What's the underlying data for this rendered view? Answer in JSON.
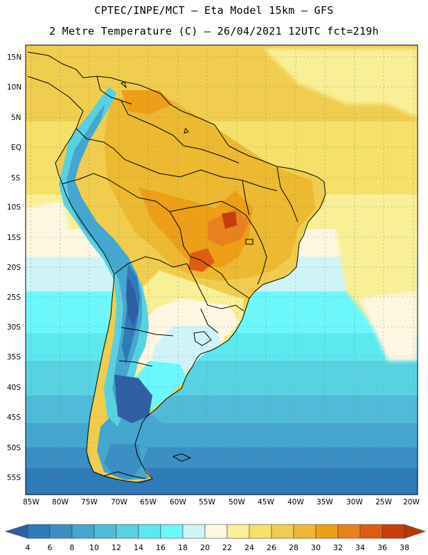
{
  "header": {
    "line1": "CPTEC/INPE/MCT –  Eta Model 15km – GFS",
    "line2": "2 Metre Temperature (C) – 26/04/2021 12UTC fct=219h"
  },
  "map": {
    "lat_ticks": [
      "15N",
      "10N",
      "5N",
      "EQ",
      "5S",
      "10S",
      "15S",
      "20S",
      "25S",
      "30S",
      "35S",
      "40S",
      "45S",
      "50S",
      "55S"
    ],
    "lon_ticks": [
      "85W",
      "80W",
      "75W",
      "70W",
      "65W",
      "60W",
      "55W",
      "50W",
      "45W",
      "40W",
      "35W",
      "30W",
      "25W",
      "20W"
    ]
  },
  "legend": {
    "levels": [
      "4",
      "6",
      "8",
      "10",
      "12",
      "14",
      "16",
      "18",
      "20",
      "22",
      "24",
      "26",
      "28",
      "30",
      "32",
      "34",
      "36",
      "38"
    ],
    "colors": [
      "#2f5ea3",
      "#2f7ab8",
      "#3b8fc4",
      "#45a6cf",
      "#4fbbd8",
      "#58d2e2",
      "#5be8ef",
      "#6cf7fb",
      "#cff4f8",
      "#fdf7e2",
      "#f8ef96",
      "#f5e06a",
      "#f0cd4e",
      "#ecb930",
      "#ec9f17",
      "#e9811f",
      "#df5d12",
      "#c83d0b",
      "#b23a07"
    ]
  }
}
